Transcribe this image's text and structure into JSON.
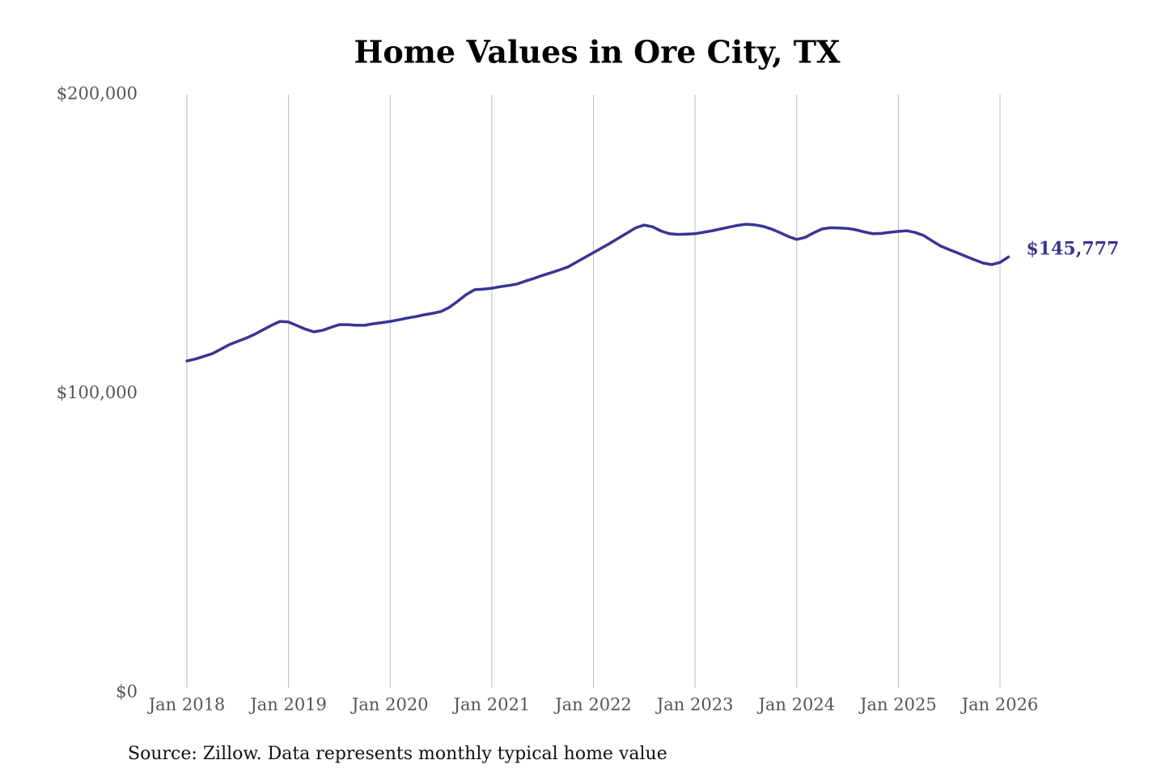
{
  "chart_data": {
    "type": "line",
    "title": "Home Values in Ore City, TX",
    "source": "Source: Zillow. Data represents monthly typical home value",
    "x": [
      "2018-01",
      "2018-02",
      "2018-03",
      "2018-04",
      "2018-05",
      "2018-06",
      "2018-07",
      "2018-08",
      "2018-09",
      "2018-10",
      "2018-11",
      "2018-12",
      "2019-01",
      "2019-02",
      "2019-03",
      "2019-04",
      "2019-05",
      "2019-06",
      "2019-07",
      "2019-08",
      "2019-09",
      "2019-10",
      "2019-11",
      "2019-12",
      "2020-01",
      "2020-02",
      "2020-03",
      "2020-04",
      "2020-05",
      "2020-06",
      "2020-07",
      "2020-08",
      "2020-09",
      "2020-10",
      "2020-11",
      "2020-12",
      "2021-01",
      "2021-02",
      "2021-03",
      "2021-04",
      "2021-05",
      "2021-06",
      "2021-07",
      "2021-08",
      "2021-09",
      "2021-10",
      "2021-11",
      "2021-12",
      "2022-01",
      "2022-02",
      "2022-03",
      "2022-04",
      "2022-05",
      "2022-06",
      "2022-07",
      "2022-08",
      "2022-09",
      "2022-10",
      "2022-11",
      "2022-12",
      "2023-01",
      "2023-02",
      "2023-03",
      "2023-04",
      "2023-05",
      "2023-06",
      "2023-07",
      "2023-08",
      "2023-09",
      "2023-10",
      "2023-11",
      "2023-12",
      "2024-01",
      "2024-02",
      "2024-03",
      "2024-04",
      "2024-05",
      "2024-06",
      "2024-07",
      "2024-08",
      "2024-09",
      "2024-10",
      "2024-11",
      "2024-12",
      "2025-01",
      "2025-02",
      "2025-03",
      "2025-04",
      "2025-05",
      "2025-06",
      "2025-07",
      "2025-08",
      "2025-09",
      "2025-10",
      "2025-11",
      "2025-12",
      "2026-01",
      "2026-02"
    ],
    "series": [
      {
        "name": "Typical home value",
        "color": "#3a3494",
        "values": [
          111000,
          111600,
          112500,
          113400,
          114900,
          116400,
          117500,
          118600,
          119900,
          121400,
          122900,
          124200,
          124000,
          122800,
          121600,
          120700,
          121200,
          122200,
          123100,
          123100,
          122900,
          122900,
          123400,
          123800,
          124200,
          124700,
          125300,
          125800,
          126400,
          126900,
          127500,
          128900,
          131000,
          133200,
          134800,
          135000,
          135300,
          135800,
          136200,
          136700,
          137700,
          138600,
          139600,
          140500,
          141400,
          142400,
          144000,
          145600,
          147200,
          148800,
          150400,
          152100,
          153800,
          155500,
          156400,
          155800,
          154400,
          153500,
          153300,
          153400,
          153500,
          154000,
          154500,
          155100,
          155700,
          156300,
          156700,
          156500,
          156000,
          155100,
          153900,
          152600,
          151600,
          152300,
          153800,
          155100,
          155500,
          155400,
          155300,
          154800,
          154100,
          153500,
          153600,
          154000,
          154300,
          154500,
          153900,
          152900,
          151100,
          149400,
          148200,
          147100,
          145900,
          144800,
          143700,
          143200,
          143900,
          145777
        ]
      }
    ],
    "annotations": [
      {
        "text": "$145,777",
        "x": "2026-02",
        "y": 145777
      }
    ],
    "xlim": [
      "2018-01",
      "2026-02"
    ],
    "xticks": [
      {
        "value": "2018-01",
        "label": "Jan 2018"
      },
      {
        "value": "2019-01",
        "label": "Jan 2019"
      },
      {
        "value": "2020-01",
        "label": "Jan 2020"
      },
      {
        "value": "2021-01",
        "label": "Jan 2021"
      },
      {
        "value": "2022-01",
        "label": "Jan 2022"
      },
      {
        "value": "2023-01",
        "label": "Jan 2023"
      },
      {
        "value": "2024-01",
        "label": "Jan 2024"
      },
      {
        "value": "2025-01",
        "label": "Jan 2025"
      },
      {
        "value": "2026-01",
        "label": "Jan 2026"
      }
    ],
    "ylim": [
      0,
      200000
    ],
    "yticks": [
      {
        "value": 0,
        "label": "$0"
      },
      {
        "value": 100000,
        "label": "$100,000"
      },
      {
        "value": 200000,
        "label": "$200,000"
      }
    ],
    "grid": "x"
  }
}
